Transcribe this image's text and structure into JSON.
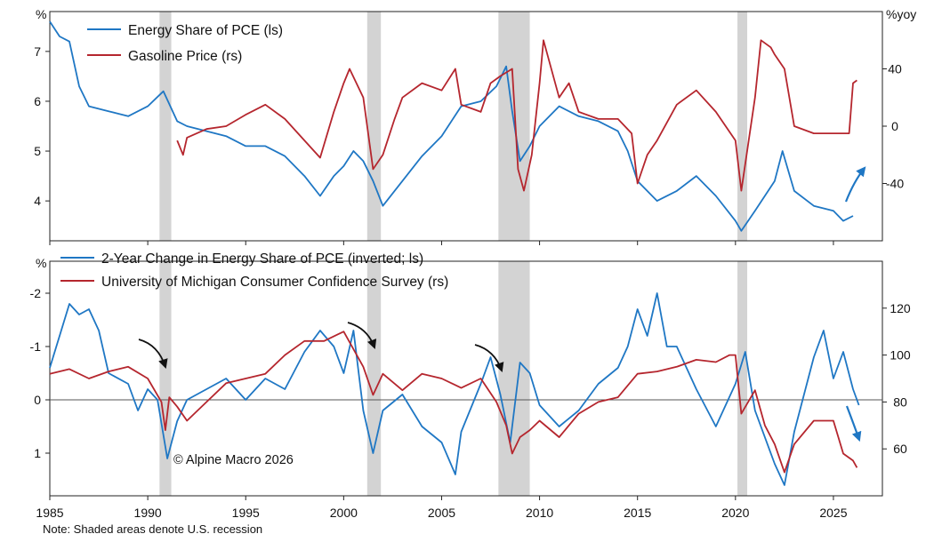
{
  "chart_data": [
    {
      "type": "line",
      "panel": "top",
      "x_range": [
        1985,
        2027.5
      ],
      "left_axis": {
        "unit_label": "%",
        "ylim": [
          3.2,
          7.8
        ],
        "ticks": [
          4,
          5,
          6,
          7
        ]
      },
      "right_axis": {
        "unit_label": "%yoy",
        "ylim": [
          -80,
          80
        ],
        "ticks": [
          40,
          0,
          -40
        ]
      },
      "series": [
        {
          "name": "Energy Share of PCE (ls)",
          "axis": "left",
          "color": "#1f77c4",
          "x": [
            1985,
            1985.5,
            1986,
            1986.5,
            1987,
            1988,
            1989,
            1990,
            1990.8,
            1991.5,
            1992,
            1993,
            1994,
            1995,
            1996,
            1997,
            1998,
            1998.8,
            1999.5,
            2000,
            2000.5,
            2001,
            2001.5,
            2002,
            2003,
            2004,
            2005,
            2006,
            2007,
            2007.8,
            2008.3,
            2008.6,
            2009,
            2009.5,
            2010,
            2011,
            2012,
            2013,
            2014,
            2014.5,
            2015,
            2016,
            2017,
            2018,
            2019,
            2020,
            2020.3,
            2021,
            2022,
            2022.4,
            2023,
            2024,
            2025,
            2025.5,
            2026
          ],
          "y": [
            7.6,
            7.3,
            7.2,
            6.3,
            5.9,
            5.8,
            5.7,
            5.9,
            6.2,
            5.6,
            5.5,
            5.4,
            5.3,
            5.1,
            5.1,
            4.9,
            4.5,
            4.1,
            4.5,
            4.7,
            5.0,
            4.8,
            4.4,
            3.9,
            4.4,
            4.9,
            5.3,
            5.9,
            6.0,
            6.3,
            6.7,
            5.8,
            4.8,
            5.1,
            5.5,
            5.9,
            5.7,
            5.6,
            5.4,
            5.0,
            4.4,
            4.0,
            4.2,
            4.5,
            4.1,
            3.6,
            3.4,
            3.8,
            4.4,
            5.0,
            4.2,
            3.9,
            3.8,
            3.6,
            3.7
          ]
        },
        {
          "name": "Gasoline Price (rs)",
          "axis": "right",
          "color": "#b5262e",
          "x": [
            1991.5,
            1991.8,
            1992,
            1993,
            1994,
            1995,
            1996,
            1997,
            1998,
            1998.8,
            1999.5,
            2000,
            2000.3,
            2001,
            2001.5,
            2002,
            2002.6,
            2003,
            2004,
            2005,
            2005.7,
            2006,
            2007,
            2007.5,
            2008,
            2008.6,
            2008.9,
            2009.2,
            2009.6,
            2010,
            2010.2,
            2011,
            2011.5,
            2012,
            2013,
            2014,
            2014.7,
            2015,
            2015.5,
            2016,
            2017,
            2018,
            2019,
            2020,
            2020.3,
            2021,
            2021.3,
            2021.8,
            2022,
            2022.5,
            2023,
            2024,
            2025,
            2025.8,
            2026,
            2026.2
          ],
          "y": [
            -10,
            -20,
            -8,
            -2,
            0,
            8,
            15,
            5,
            -10,
            -22,
            10,
            30,
            40,
            20,
            -30,
            -20,
            5,
            20,
            30,
            25,
            40,
            15,
            10,
            30,
            35,
            40,
            -30,
            -45,
            -20,
            30,
            60,
            20,
            30,
            10,
            5,
            5,
            -5,
            -40,
            -20,
            -10,
            15,
            25,
            10,
            -10,
            -45,
            20,
            60,
            55,
            50,
            40,
            0,
            -5,
            -5,
            -5,
            30,
            32
          ]
        }
      ],
      "legend": [
        "Energy Share of PCE (ls)",
        "Gasoline Price (rs)"
      ],
      "annotations": [
        "arrow up (blue)"
      ]
    },
    {
      "type": "line",
      "panel": "bottom",
      "x_range": [
        1985,
        2027.5
      ],
      "left_axis": {
        "unit_label": "%",
        "ylim": [
          1.8,
          -2.6
        ],
        "ticks": [
          1,
          0,
          -1,
          -2
        ]
      },
      "right_axis": {
        "unit_label": "",
        "ylim": [
          40,
          140
        ],
        "ticks": [
          120,
          100,
          80,
          60
        ]
      },
      "baseline": 0,
      "series": [
        {
          "name": "2-Year Change in Energy Share of PCE (inverted; ls)",
          "axis": "left",
          "color": "#1f77c4",
          "x": [
            1985,
            1985.5,
            1986,
            1986.5,
            1987,
            1987.5,
            1988,
            1989,
            1989.5,
            1990,
            1990.5,
            1991,
            1991.5,
            1992,
            1993,
            1994,
            1995,
            1996,
            1997,
            1998,
            1998.8,
            1999.5,
            2000,
            2000.5,
            2001,
            2001.5,
            2002,
            2003,
            2004,
            2005,
            2005.7,
            2006,
            2007,
            2007.5,
            2008,
            2008.5,
            2009,
            2009.5,
            2010,
            2011,
            2012,
            2013,
            2014,
            2014.5,
            2015,
            2015.5,
            2016,
            2016.5,
            2017,
            2018,
            2019,
            2020,
            2020.5,
            2021,
            2022,
            2022.5,
            2023,
            2024,
            2024.5,
            2025,
            2025.5,
            2026,
            2026.3
          ],
          "y": [
            -0.6,
            -1.2,
            -1.8,
            -1.6,
            -1.7,
            -1.3,
            -0.5,
            -0.3,
            0.2,
            -0.2,
            0.0,
            1.1,
            0.4,
            0.0,
            -0.2,
            -0.4,
            0.0,
            -0.4,
            -0.2,
            -0.9,
            -1.3,
            -1.0,
            -0.5,
            -1.3,
            0.2,
            1.0,
            0.2,
            -0.1,
            0.5,
            0.8,
            1.4,
            0.6,
            -0.3,
            -0.8,
            -0.1,
            0.8,
            -0.7,
            -0.5,
            0.1,
            0.5,
            0.2,
            -0.3,
            -0.6,
            -1.0,
            -1.7,
            -1.2,
            -2.0,
            -1.0,
            -1.0,
            -0.2,
            0.5,
            -0.3,
            -0.9,
            0.2,
            1.2,
            1.6,
            0.6,
            -0.8,
            -1.3,
            -0.4,
            -0.9,
            -0.2,
            0.1
          ]
        },
        {
          "name": "University of Michigan Consumer Confidence Survey (rs)",
          "axis": "right",
          "color": "#b5262e",
          "x": [
            1985,
            1986,
            1987,
            1988,
            1989,
            1990,
            1990.7,
            1990.9,
            1991.1,
            1991.5,
            1992,
            1993,
            1994,
            1995,
            1996,
            1997,
            1998,
            1999,
            2000,
            2001,
            2001.5,
            2002,
            2003,
            2004,
            2005,
            2006,
            2007,
            2007.8,
            2008.3,
            2008.6,
            2009,
            2009.5,
            2010,
            2011,
            2012,
            2013,
            2014,
            2015,
            2016,
            2017,
            2018,
            2019,
            2019.7,
            2020,
            2020.3,
            2021,
            2021.5,
            2022,
            2022.5,
            2023,
            2024,
            2025,
            2025.5,
            2026,
            2026.2
          ],
          "y": [
            92,
            94,
            90,
            93,
            95,
            90,
            80,
            68,
            82,
            78,
            72,
            80,
            88,
            90,
            92,
            100,
            106,
            106,
            110,
            95,
            83,
            92,
            85,
            92,
            90,
            86,
            90,
            80,
            70,
            58,
            65,
            68,
            72,
            65,
            75,
            80,
            82,
            92,
            93,
            95,
            98,
            97,
            100,
            100,
            75,
            85,
            70,
            62,
            50,
            62,
            72,
            72,
            58,
            55,
            52
          ]
        }
      ],
      "legend": [
        "2-Year Change in Energy Share of PCE (inverted; ls)",
        "University of Michigan Consumer Confidence Survey (rs)"
      ],
      "annotations": [
        "arrow 1990",
        "arrow 2001",
        "arrow 2008",
        "arrow down (blue)"
      ],
      "copyright": "© Alpine Macro 2026"
    }
  ],
  "shared": {
    "recessions": [
      [
        1990.6,
        1991.2
      ],
      [
        2001.2,
        2001.9
      ],
      [
        2007.9,
        2009.5
      ],
      [
        2020.1,
        2020.6
      ]
    ],
    "x_ticks": [
      1985,
      1990,
      1995,
      2000,
      2005,
      2010,
      2015,
      2020,
      2025
    ],
    "note": "Note: Shaded areas denote U.S. recession"
  }
}
